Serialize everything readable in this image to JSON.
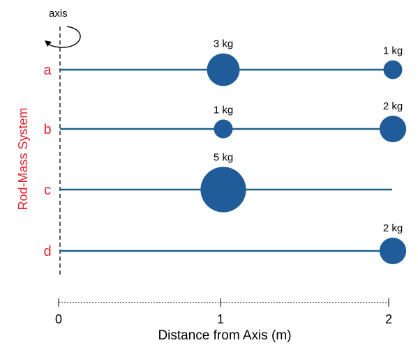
{
  "figure": {
    "axis_label": "axis",
    "y_title": "Rod-Mass System",
    "x_title": "Distance from Axis (m)",
    "x_ticks": [
      "0",
      "1",
      "2"
    ],
    "colors": {
      "rod": "#1F5F8B",
      "mass": "#1F5C99",
      "row_label": "#E8202A",
      "text": "#000000"
    },
    "systems": [
      {
        "label": "a",
        "masses": [
          {
            "position_m": 1,
            "text": "3 kg",
            "kg": 3
          },
          {
            "position_m": 2,
            "text": "1 kg",
            "kg": 1
          }
        ]
      },
      {
        "label": "b",
        "masses": [
          {
            "position_m": 1,
            "text": "1 kg",
            "kg": 1
          },
          {
            "position_m": 2,
            "text": "2 kg",
            "kg": 2
          }
        ]
      },
      {
        "label": "c",
        "masses": [
          {
            "position_m": 1,
            "text": "5 kg",
            "kg": 5
          }
        ]
      },
      {
        "label": "d",
        "masses": [
          {
            "position_m": 2,
            "text": "2 kg",
            "kg": 2
          }
        ]
      }
    ]
  }
}
